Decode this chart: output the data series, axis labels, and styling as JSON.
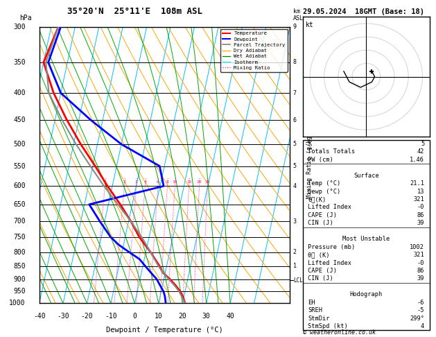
{
  "title_left": "35°20'N  25°11'E  108m ASL",
  "title_right": "29.05.2024  18GMT (Base: 18)",
  "xlabel": "Dewpoint / Temperature (°C)",
  "pressure_levels": [
    300,
    350,
    400,
    450,
    500,
    550,
    600,
    650,
    700,
    750,
    800,
    850,
    900,
    950,
    1000
  ],
  "temp_min": -40,
  "temp_max": 40,
  "background": "#ffffff",
  "isotherm_color": "#00bfff",
  "dry_adiabat_color": "#ffa500",
  "wet_adiabat_color": "#00aa00",
  "mixing_ratio_color": "#ff1493",
  "temp_color": "#ff0000",
  "dewpoint_color": "#0000ff",
  "parcel_color": "#888888",
  "temp_data": {
    "pressure": [
      1000,
      970,
      950,
      925,
      900,
      875,
      850,
      825,
      800,
      775,
      750,
      700,
      650,
      600,
      550,
      500,
      450,
      400,
      350,
      300
    ],
    "temp": [
      21.1,
      19.5,
      18.0,
      15.5,
      12.5,
      9.0,
      7.0,
      4.5,
      2.0,
      -1.0,
      -4.0,
      -9.0,
      -15.0,
      -22.0,
      -29.0,
      -37.0,
      -45.0,
      -53.0,
      -60.0,
      -57.0
    ]
  },
  "dewpoint_data": {
    "pressure": [
      1000,
      970,
      950,
      925,
      900,
      875,
      850,
      825,
      800,
      775,
      750,
      700,
      650,
      600,
      550,
      500,
      450,
      400,
      350,
      300
    ],
    "dewp": [
      13,
      12,
      11,
      9,
      7,
      4,
      1,
      -2,
      -7,
      -12,
      -16,
      -22,
      -28,
      1.5,
      -2,
      -20,
      -35,
      -50,
      -58,
      -56
    ]
  },
  "parcel_data": {
    "pressure": [
      1000,
      970,
      950,
      925,
      900,
      875,
      850,
      800,
      750,
      700,
      650,
      600,
      550,
      500,
      450,
      400,
      350,
      300
    ],
    "temp": [
      21.1,
      19.0,
      17.5,
      15.0,
      12.0,
      9.0,
      6.5,
      2.0,
      -3.0,
      -9.0,
      -16.0,
      -23.5,
      -31.0,
      -39.0,
      -47.0,
      -55.0,
      -59.0,
      -57.0
    ]
  },
  "mixing_ratio_lines": [
    1,
    2,
    3,
    4,
    6,
    8,
    10,
    15,
    20,
    25
  ],
  "lcl_pressure": 905,
  "km_labels": [
    [
      300,
      "9"
    ],
    [
      350,
      "8"
    ],
    [
      400,
      "7"
    ],
    [
      450,
      "6"
    ],
    [
      500,
      "5"
    ],
    [
      550,
      "5"
    ],
    [
      600,
      "4"
    ],
    [
      700,
      "3"
    ],
    [
      800,
      "2"
    ],
    [
      850,
      "1"
    ]
  ],
  "indices": {
    "K": "5",
    "Totals Totals": "42",
    "PW (cm)": "1.46",
    "Temp (C)": "21.1",
    "Dewp (C)": "13",
    "theta_e_K": "321",
    "Lifted Index": "-0",
    "CAPE_J": "86",
    "CIN_J": "39",
    "Pressure_mb": "1002",
    "theta_e_mu_K": "321",
    "LI_mu": "-0",
    "CAPE_mu": "86",
    "CIN_mu": "39",
    "EH": "-6",
    "SREH": "-5",
    "StmDir": "299°",
    "StmSpd_kt": "4"
  },
  "hodograph": {
    "u": [
      4,
      6,
      4,
      -4,
      -12,
      -16
    ],
    "v": [
      4,
      0,
      -4,
      -8,
      -4,
      4
    ]
  }
}
